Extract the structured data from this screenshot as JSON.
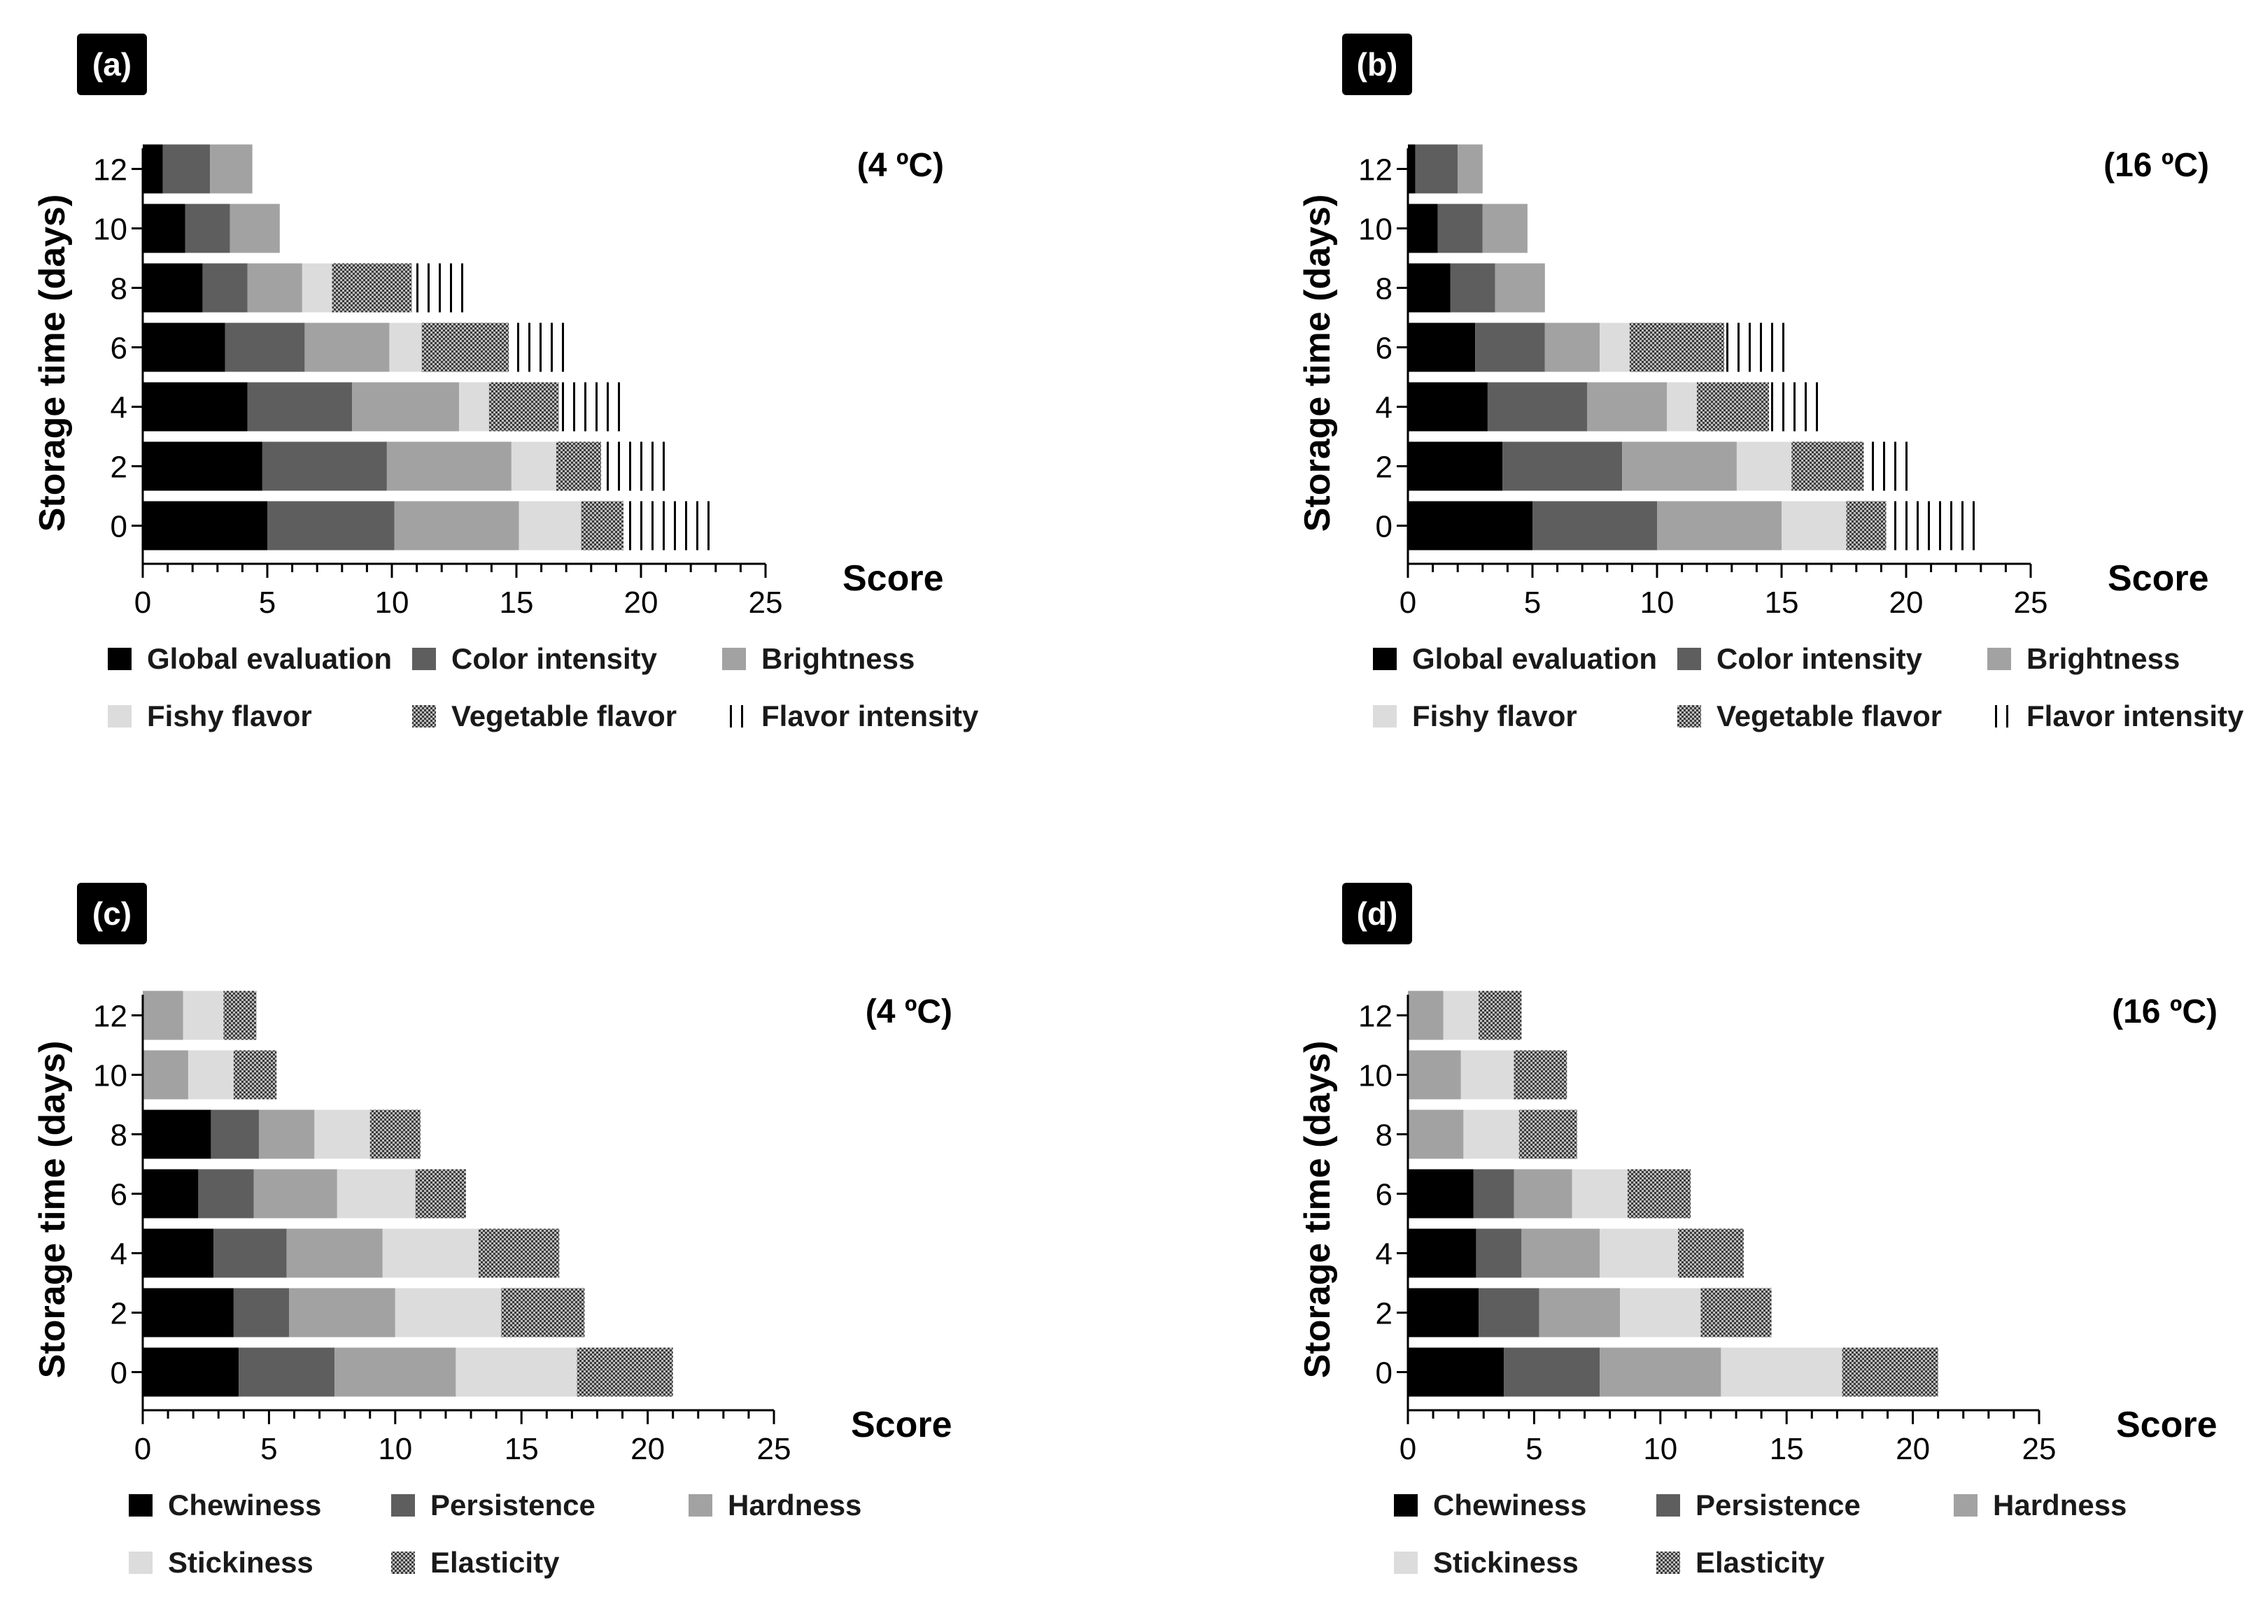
{
  "chart_data": [
    {
      "type": "bar",
      "orientation": "horizontal",
      "stacked": true,
      "panel_label": "(a)",
      "condition": "(4 ºC)",
      "ylabel": "Storage time (days)",
      "xlabel": "Score",
      "xlim": [
        0,
        25
      ],
      "xticks": [
        0,
        5,
        10,
        15,
        20,
        25
      ],
      "categories": [
        0,
        2,
        4,
        6,
        8,
        10,
        12
      ],
      "legend_position": "bottom",
      "series": [
        {
          "name": "Global evaluation",
          "pattern": "black",
          "values": [
            5.0,
            4.8,
            4.2,
            3.3,
            2.4,
            1.7,
            0.8
          ]
        },
        {
          "name": "Color intensity",
          "pattern": "darkgray",
          "values": [
            5.1,
            5.0,
            4.2,
            3.2,
            1.8,
            1.8,
            1.9
          ]
        },
        {
          "name": "Brightness",
          "pattern": "gray",
          "values": [
            5.0,
            5.0,
            4.3,
            3.4,
            2.2,
            2.0,
            1.7
          ]
        },
        {
          "name": "Fishy flavor",
          "pattern": "lightgray",
          "values": [
            2.5,
            1.8,
            1.2,
            1.3,
            1.2,
            0,
            0
          ]
        },
        {
          "name": "Vegetable flavor",
          "pattern": "crosshatch",
          "values": [
            1.7,
            1.8,
            2.8,
            3.5,
            3.2,
            0,
            0
          ]
        },
        {
          "name": "Flavor intensity",
          "pattern": "vlines",
          "values": [
            3.7,
            2.6,
            2.6,
            2.5,
            2.2,
            0,
            0
          ]
        }
      ]
    },
    {
      "type": "bar",
      "orientation": "horizontal",
      "stacked": true,
      "panel_label": "(b)",
      "condition": "(16 ºC)",
      "ylabel": "Storage time (days)",
      "xlabel": "Score",
      "xlim": [
        0,
        25
      ],
      "xticks": [
        0,
        5,
        10,
        15,
        20,
        25
      ],
      "categories": [
        0,
        2,
        4,
        6,
        8,
        10,
        12
      ],
      "legend_position": "bottom",
      "series": [
        {
          "name": "Global evaluation",
          "pattern": "black",
          "values": [
            5.0,
            3.8,
            3.2,
            2.7,
            1.7,
            1.2,
            0.3
          ]
        },
        {
          "name": "Color intensity",
          "pattern": "darkgray",
          "values": [
            5.0,
            4.8,
            4.0,
            2.8,
            1.8,
            1.8,
            1.7
          ]
        },
        {
          "name": "Brightness",
          "pattern": "gray",
          "values": [
            5.0,
            4.6,
            3.2,
            2.2,
            2.0,
            1.8,
            1.0
          ]
        },
        {
          "name": "Fishy flavor",
          "pattern": "lightgray",
          "values": [
            2.6,
            2.2,
            1.2,
            1.2,
            0,
            0,
            0
          ]
        },
        {
          "name": "Vegetable flavor",
          "pattern": "crosshatch",
          "values": [
            1.6,
            2.9,
            2.9,
            3.8,
            0,
            0,
            0
          ]
        },
        {
          "name": "Flavor intensity",
          "pattern": "vlines",
          "values": [
            3.7,
            2.0,
            2.0,
            2.6,
            0,
            0,
            0
          ]
        }
      ]
    },
    {
      "type": "bar",
      "orientation": "horizontal",
      "stacked": true,
      "panel_label": "(c)",
      "condition": "(4 ºC)",
      "ylabel": "Storage time (days)",
      "xlabel": "Score",
      "xlim": [
        0,
        25
      ],
      "xticks": [
        0,
        5,
        10,
        15,
        20,
        25
      ],
      "categories": [
        0,
        2,
        4,
        6,
        8,
        10,
        12
      ],
      "legend_position": "bottom",
      "series": [
        {
          "name": "Chewiness",
          "pattern": "black",
          "values": [
            3.8,
            3.6,
            2.8,
            2.2,
            2.7,
            0,
            0
          ]
        },
        {
          "name": "Persistence",
          "pattern": "darkgray",
          "values": [
            3.8,
            2.2,
            2.9,
            2.2,
            1.9,
            0,
            0
          ]
        },
        {
          "name": "Hardness",
          "pattern": "gray",
          "values": [
            4.8,
            4.2,
            3.8,
            3.3,
            2.2,
            1.8,
            1.6
          ]
        },
        {
          "name": "Stickiness",
          "pattern": "lightgray",
          "values": [
            4.8,
            4.2,
            3.8,
            3.1,
            2.2,
            1.8,
            1.6
          ]
        },
        {
          "name": "Elasticity",
          "pattern": "crosshatch",
          "values": [
            3.8,
            3.3,
            3.2,
            2.0,
            2.0,
            1.7,
            1.3
          ]
        }
      ]
    },
    {
      "type": "bar",
      "orientation": "horizontal",
      "stacked": true,
      "panel_label": "(d)",
      "condition": "(16 ºC)",
      "ylabel": "Storage time (days)",
      "xlabel": "Score",
      "xlim": [
        0,
        25
      ],
      "xticks": [
        0,
        5,
        10,
        15,
        20,
        25
      ],
      "categories": [
        0,
        2,
        4,
        6,
        8,
        10,
        12
      ],
      "legend_position": "bottom",
      "series": [
        {
          "name": "Chewiness",
          "pattern": "black",
          "values": [
            3.8,
            2.8,
            2.7,
            2.6,
            0,
            0,
            0
          ]
        },
        {
          "name": "Persistence",
          "pattern": "darkgray",
          "values": [
            3.8,
            2.4,
            1.8,
            1.6,
            0,
            0,
            0
          ]
        },
        {
          "name": "Hardness",
          "pattern": "gray",
          "values": [
            4.8,
            3.2,
            3.1,
            2.3,
            2.2,
            2.1,
            1.4
          ]
        },
        {
          "name": "Stickiness",
          "pattern": "lightgray",
          "values": [
            4.8,
            3.2,
            3.1,
            2.2,
            2.2,
            2.1,
            1.4
          ]
        },
        {
          "name": "Elasticity",
          "pattern": "crosshatch",
          "values": [
            3.8,
            2.8,
            2.6,
            2.5,
            2.3,
            2.1,
            1.7
          ]
        }
      ]
    }
  ]
}
